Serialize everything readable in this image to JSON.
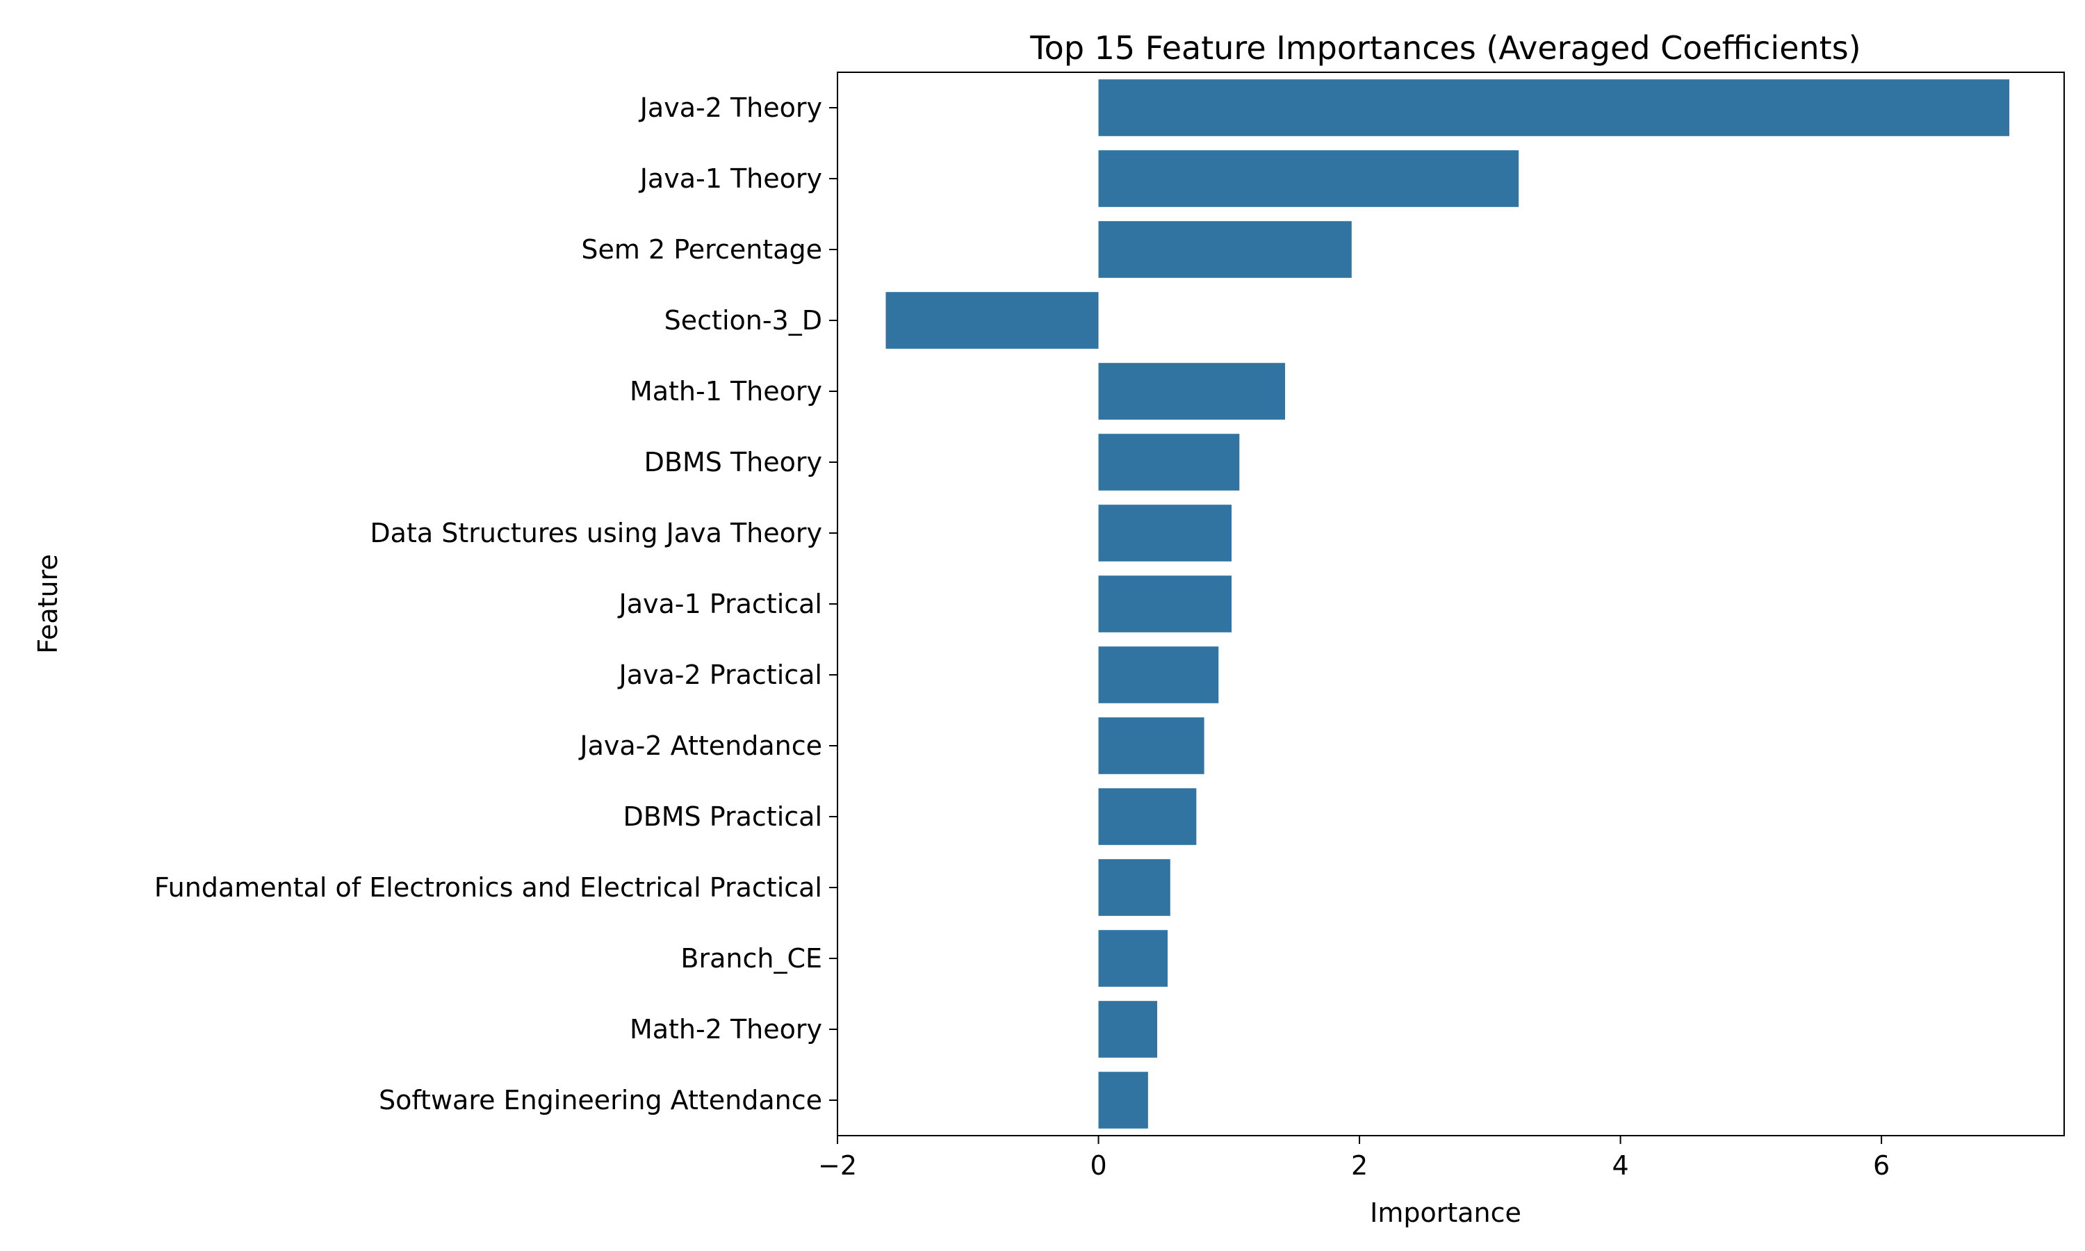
{
  "chart_data": {
    "type": "bar",
    "orientation": "horizontal",
    "title": "Top 15 Feature Importances (Averaged Coefficients)",
    "xlabel": "Importance",
    "ylabel": "Feature",
    "xlim": [
      -2.0,
      7.4
    ],
    "xticks": [
      -2,
      0,
      2,
      4,
      6
    ],
    "xtick_labels": [
      "−2",
      "0",
      "2",
      "4",
      "6"
    ],
    "grid": false,
    "bar_color": "#3274a1",
    "categories": [
      "Java-2 Theory",
      "Java-1 Theory",
      "Sem 2 Percentage",
      "Section-3_D",
      "Math-1 Theory",
      "DBMS Theory",
      "Data Structures using Java Theory",
      "Java-1 Practical",
      "Java-2 Practical",
      "Java-2 Attendance",
      "DBMS Practical",
      "Fundamental of Electronics and Electrical Practical",
      "Branch_CE",
      "Math-2 Theory",
      "Software Engineering Attendance"
    ],
    "values": [
      6.98,
      3.22,
      1.94,
      -1.63,
      1.43,
      1.08,
      1.02,
      1.02,
      0.92,
      0.81,
      0.75,
      0.55,
      0.53,
      0.45,
      0.38
    ]
  }
}
